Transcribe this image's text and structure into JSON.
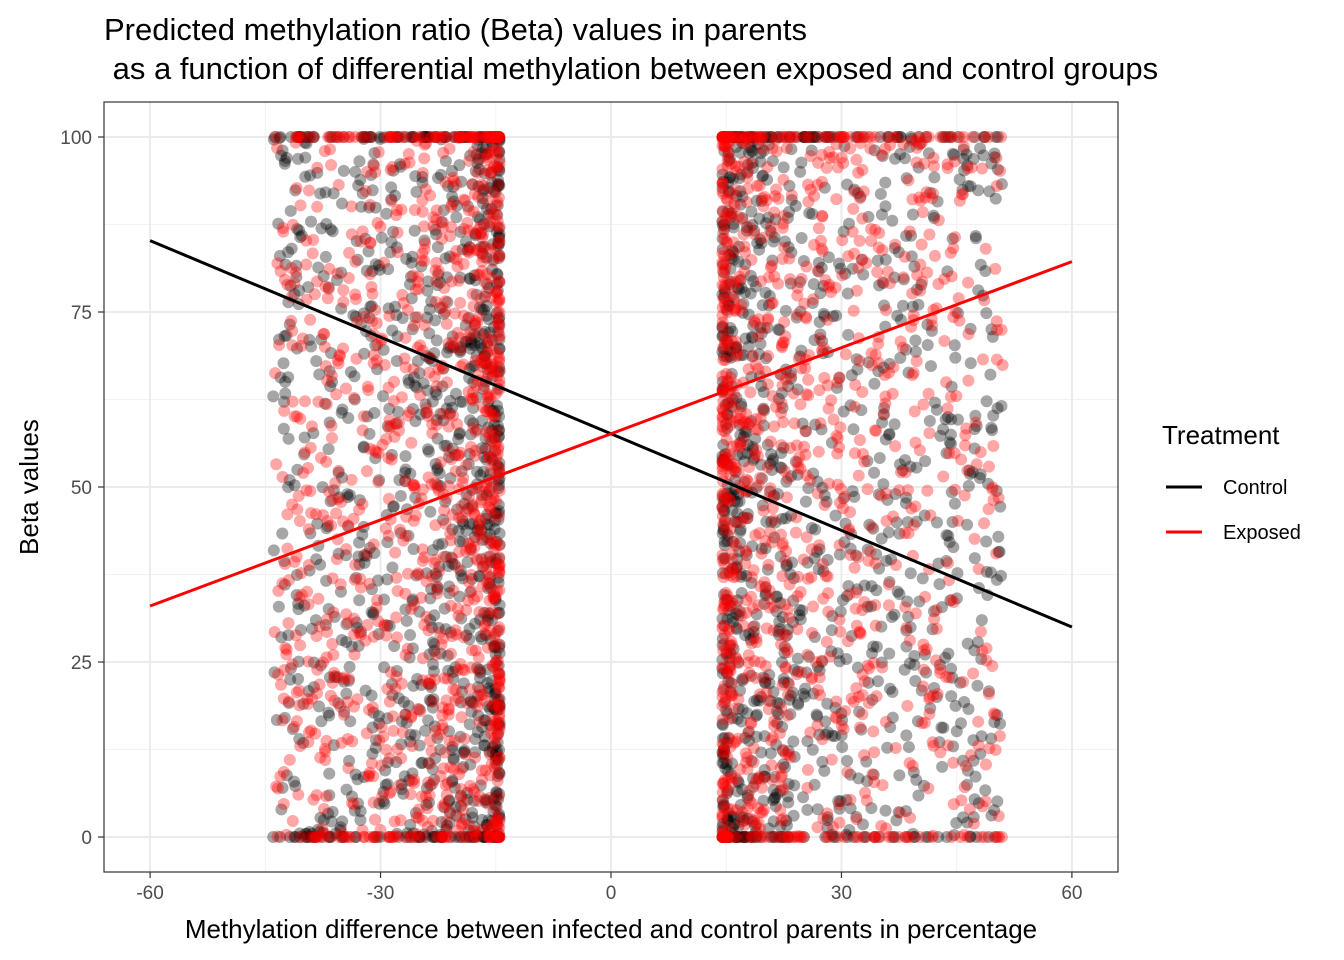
{
  "chart_data": {
    "type": "scatter",
    "title_line1": "Predicted methylation ratio (Beta) values in parents",
    "title_line2": " as a function of differential methylation between exposed and control groups",
    "xlabel": "Methylation difference between infected and control parents in percentage",
    "ylabel": "Beta values",
    "xlim": [
      -66,
      66
    ],
    "ylim": [
      -5,
      105
    ],
    "x_ticks": [
      -60,
      -30,
      0,
      30,
      60
    ],
    "x_tick_labels": [
      "-60",
      "-30",
      "0",
      "30",
      "60"
    ],
    "y_ticks": [
      0,
      25,
      50,
      75,
      100
    ],
    "y_tick_labels": [
      "0",
      "25",
      "50",
      "75",
      "100"
    ],
    "grid": true,
    "point_alpha": 0.35,
    "legend": {
      "title": "Treatment",
      "placement": "right",
      "entries": [
        {
          "label": "Control",
          "color": "#000000"
        },
        {
          "label": "Exposed",
          "color": "#ff0000"
        }
      ]
    },
    "series": [
      {
        "name": "Control",
        "color": "#000000",
        "fit_line": {
          "x": [
            -60,
            60
          ],
          "y": [
            85.2,
            30.0
          ]
        },
        "point_clusters": [
          {
            "x_range": [
              -44,
              -14.5
            ],
            "y_range": [
              0,
              100
            ],
            "density": "high, denser toward -14.5"
          },
          {
            "x_range": [
              14.5,
              51
            ],
            "y_range": [
              0,
              100
            ],
            "density": "high, denser toward 14.5"
          }
        ]
      },
      {
        "name": "Exposed",
        "color": "#ff0000",
        "fit_line": {
          "x": [
            -60,
            60
          ],
          "y": [
            33.0,
            82.2
          ]
        },
        "point_clusters": [
          {
            "x_range": [
              -44,
              -14.5
            ],
            "y_range": [
              0,
              100
            ],
            "density": "high, denser toward -14.5"
          },
          {
            "x_range": [
              14.5,
              51
            ],
            "y_range": [
              0,
              100
            ],
            "density": "high, denser toward 14.5"
          }
        ]
      }
    ]
  }
}
